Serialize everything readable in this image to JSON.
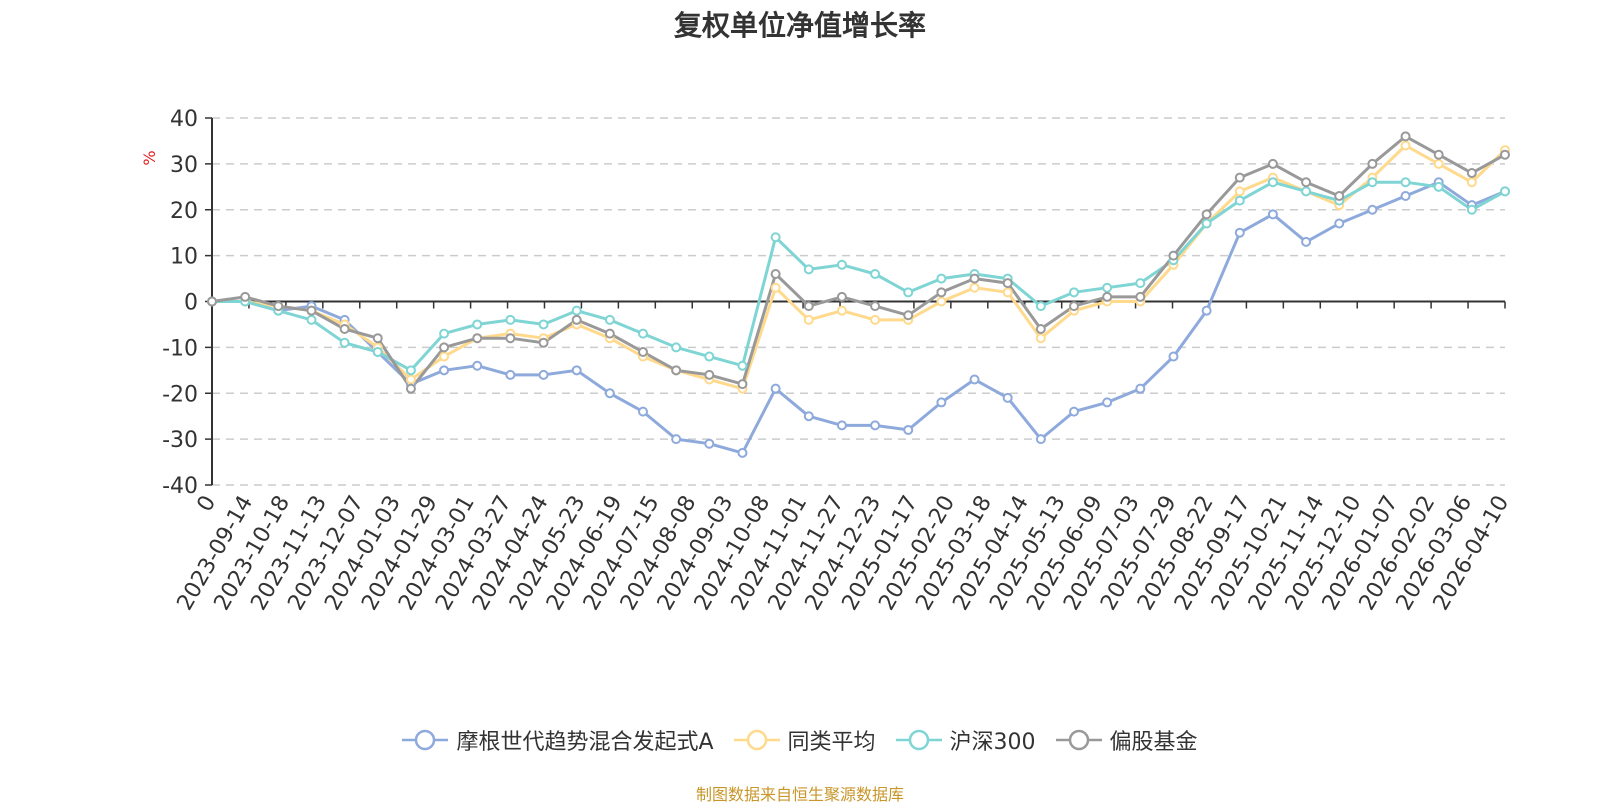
{
  "title": "复权单位净值增长率",
  "footer": "制图数据来自恒生聚源数据库",
  "colors": {
    "footer": "#c8962a",
    "unit": "#e02020",
    "axis": "#333333",
    "grid": "#cccccc"
  },
  "chart_data": {
    "type": "line",
    "title": "复权单位净值增长率",
    "ylabel": "%",
    "ylim": [
      -40,
      40
    ],
    "yticks": [
      40,
      30,
      20,
      10,
      0,
      -10,
      -20,
      -30,
      -40
    ],
    "grid": true,
    "legend_position": "bottom",
    "x_tick_labels": [
      "0",
      "2023-09-14",
      "2023-10-18",
      "2023-11-13",
      "2023-12-07",
      "2024-01-03",
      "2024-01-29",
      "2024-03-01",
      "2024-03-27",
      "2024-04-24",
      "2024-05-23",
      "2024-06-19",
      "2024-07-15",
      "2024-08-08",
      "2024-09-03",
      "2024-10-08",
      "2024-11-01",
      "2024-11-27",
      "2024-12-23",
      "2025-01-17",
      "2025-02-20",
      "2025-03-18",
      "2025-04-14",
      "2025-05-13",
      "2025-06-09",
      "2025-07-03",
      "2025-07-29",
      "2025-08-22",
      "2025-09-17",
      "2025-10-21",
      "2025-11-14",
      "2025-12-10",
      "2026-01-07",
      "2026-02-02",
      "2026-03-06",
      "2026-04-10"
    ],
    "x": [
      "0",
      "2023-09-14",
      "2023-10-18",
      "2023-11-13",
      "2023-12-07",
      "2024-01-03",
      "2024-01-29",
      "2024-02-15",
      "2024-03-01",
      "2024-03-27",
      "2024-04-24",
      "2024-05-23",
      "2024-06-19",
      "2024-07-15",
      "2024-08-08",
      "2024-09-03",
      "2024-09-27",
      "2024-10-08",
      "2024-11-01",
      "2024-11-27",
      "2024-12-23",
      "2025-01-17",
      "2025-02-20",
      "2025-03-18",
      "2025-04-07",
      "2025-04-14",
      "2025-05-13",
      "2025-06-09",
      "2025-07-03",
      "2025-07-29",
      "2025-08-22",
      "2025-09-17",
      "2025-10-21",
      "2025-11-14",
      "2025-12-10",
      "2026-01-07",
      "2026-02-02",
      "2026-03-06",
      "2026-04-02",
      "2026-04-10"
    ],
    "series": [
      {
        "name": "摩根世代趋势混合发起式A",
        "color": "#8ea9db",
        "values": [
          0,
          0,
          -2,
          -1,
          -4,
          -11,
          -18,
          -15,
          -14,
          -16,
          -16,
          -15,
          -20,
          -24,
          -30,
          -31,
          -33,
          -19,
          -25,
          -27,
          -27,
          -28,
          -22,
          -17,
          -21,
          -30,
          -24,
          -22,
          -19,
          -12,
          -2,
          15,
          19,
          13,
          17,
          20,
          23,
          26,
          21,
          24
        ]
      },
      {
        "name": "同类平均",
        "color": "#ffd98c",
        "values": [
          0,
          0,
          -1,
          -2,
          -5,
          -10,
          -17,
          -12,
          -8,
          -7,
          -8,
          -5,
          -8,
          -12,
          -15,
          -17,
          -19,
          3,
          -4,
          -2,
          -4,
          -4,
          0,
          3,
          2,
          -8,
          -2,
          0,
          0,
          8,
          17,
          24,
          27,
          24,
          21,
          27,
          34,
          30,
          26,
          33
        ]
      },
      {
        "name": "沪深300",
        "color": "#7fd4d4",
        "values": [
          0,
          0,
          -2,
          -4,
          -9,
          -11,
          -15,
          -7,
          -5,
          -4,
          -5,
          -2,
          -4,
          -7,
          -10,
          -12,
          -14,
          14,
          7,
          8,
          6,
          2,
          5,
          6,
          5,
          -1,
          2,
          3,
          4,
          9,
          17,
          22,
          26,
          24,
          22,
          26,
          26,
          25,
          20,
          24
        ]
      },
      {
        "name": "偏股基金",
        "color": "#999999",
        "values": [
          0,
          1,
          -1,
          -2,
          -6,
          -8,
          -19,
          -10,
          -8,
          -8,
          -9,
          -4,
          -7,
          -11,
          -15,
          -16,
          -18,
          6,
          -1,
          1,
          -1,
          -3,
          2,
          5,
          4,
          -6,
          -1,
          1,
          1,
          10,
          19,
          27,
          30,
          26,
          23,
          30,
          36,
          32,
          28,
          32
        ]
      }
    ]
  }
}
